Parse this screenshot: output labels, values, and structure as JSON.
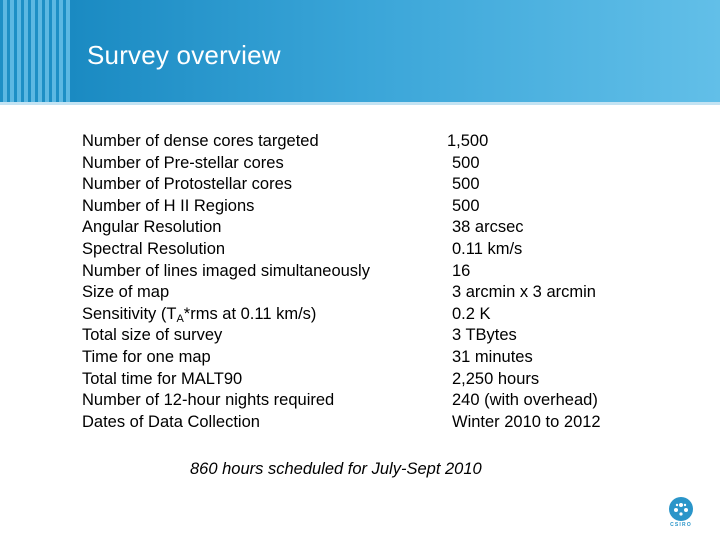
{
  "slide": {
    "title": "Survey overview",
    "rows": [
      {
        "label": "Number of dense cores targeted",
        "value": "1,500"
      },
      {
        "label": "Number of Pre-stellar cores",
        "value": "500"
      },
      {
        "label": "Number of Protostellar cores",
        "value": "500"
      },
      {
        "label": "Number of H II Regions",
        "value": "500"
      },
      {
        "label": "Angular Resolution",
        "value": "38 arcsec"
      },
      {
        "label": "Spectral Resolution",
        "value": "0.11 km/s"
      },
      {
        "label": "Number of lines imaged simultaneously",
        "value": "16"
      },
      {
        "label": "Size of map",
        "value": "3 arcmin x 3 arcmin"
      },
      {
        "label_pre": "Sensitivity (T",
        "label_sub": "A",
        "label_post": "*rms at 0.11 km/s)",
        "value": "0.2 K"
      },
      {
        "label": "Total size of survey",
        "value": "3 TBytes"
      },
      {
        "label": "Time for one map",
        "value": "31 minutes"
      },
      {
        "label": "Total time for MALT90",
        "value": "2,250 hours"
      },
      {
        "label": "Number of 12-hour nights required",
        "value": "240 (with overhead)"
      },
      {
        "label": "Dates of Data Collection",
        "value": "Winter 2010 to 2012"
      }
    ],
    "note": "860 hours scheduled for July-Sept 2010",
    "logo_text": "CSIRO",
    "colors": {
      "banner": "#1a8ac2",
      "accent": "#2a95c9"
    }
  }
}
